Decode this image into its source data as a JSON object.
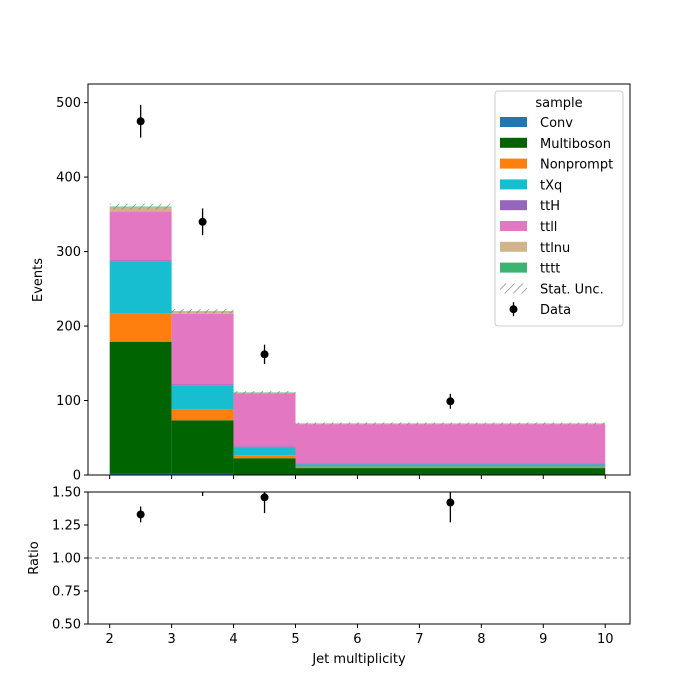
{
  "chart_data": [
    {
      "type": "bar",
      "subtype": "stacked-histogram",
      "panel": "main",
      "ylabel": "Events",
      "ylim": [
        0,
        525
      ],
      "y_ticks": [
        0,
        100,
        200,
        300,
        400,
        500
      ],
      "bins": [
        [
          2,
          3
        ],
        [
          3,
          4
        ],
        [
          4,
          5
        ],
        [
          5,
          10
        ]
      ],
      "series": [
        {
          "name": "Conv",
          "color": "#1f77b4",
          "values": [
            2,
            1.5,
            0.5,
            0.3
          ]
        },
        {
          "name": "Multiboson",
          "color": "#006400",
          "values": [
            177,
            72,
            22,
            9
          ]
        },
        {
          "name": "Nonprompt",
          "color": "#ff7f0e",
          "values": [
            38,
            15,
            4,
            2
          ]
        },
        {
          "name": "tXq",
          "color": "#17becf",
          "values": [
            70,
            32,
            11,
            3
          ]
        },
        {
          "name": "ttH",
          "color": "#9467bd",
          "values": [
            1,
            1,
            1,
            1
          ]
        },
        {
          "name": "ttll",
          "color": "#e377c2",
          "values": [
            66,
            95,
            71,
            53
          ]
        },
        {
          "name": "ttlnu",
          "color": "#d2b48c",
          "values": [
            6,
            3,
            1,
            0.5
          ]
        },
        {
          "name": "tttt",
          "color": "#3cb371",
          "values": [
            0.3,
            0.3,
            0.3,
            0.3
          ]
        }
      ],
      "stat_unc": {
        "name": "Stat. Unc.",
        "half_width": [
          4,
          3,
          2,
          1.5
        ]
      },
      "data": {
        "name": "Data",
        "x": [
          2.5,
          3.5,
          4.5,
          7.5
        ],
        "y": [
          475,
          340,
          162,
          99
        ],
        "yerr": [
          22,
          18,
          13,
          10
        ]
      },
      "legend": {
        "title": "sample",
        "placement": "top-right"
      }
    },
    {
      "type": "scatter",
      "panel": "ratio",
      "xlabel": "Jet multiplicity",
      "ylabel": "Ratio",
      "xlim": [
        1.65,
        10.4
      ],
      "ylim": [
        0.5,
        1.5
      ],
      "x_ticks": [
        2,
        3,
        4,
        5,
        6,
        7,
        8,
        9,
        10
      ],
      "y_ticks": [
        0.5,
        0.75,
        1.0,
        1.25,
        1.5
      ],
      "y_tick_labels": [
        "0.50",
        "0.75",
        "1.00",
        "1.25",
        "1.50"
      ],
      "reference_line": 1.0,
      "x": [
        2.5,
        3.5,
        4.5,
        7.5
      ],
      "y": [
        1.33,
        1.55,
        1.46,
        1.42
      ],
      "yerr": [
        0.06,
        0.08,
        0.12,
        0.15
      ]
    }
  ]
}
